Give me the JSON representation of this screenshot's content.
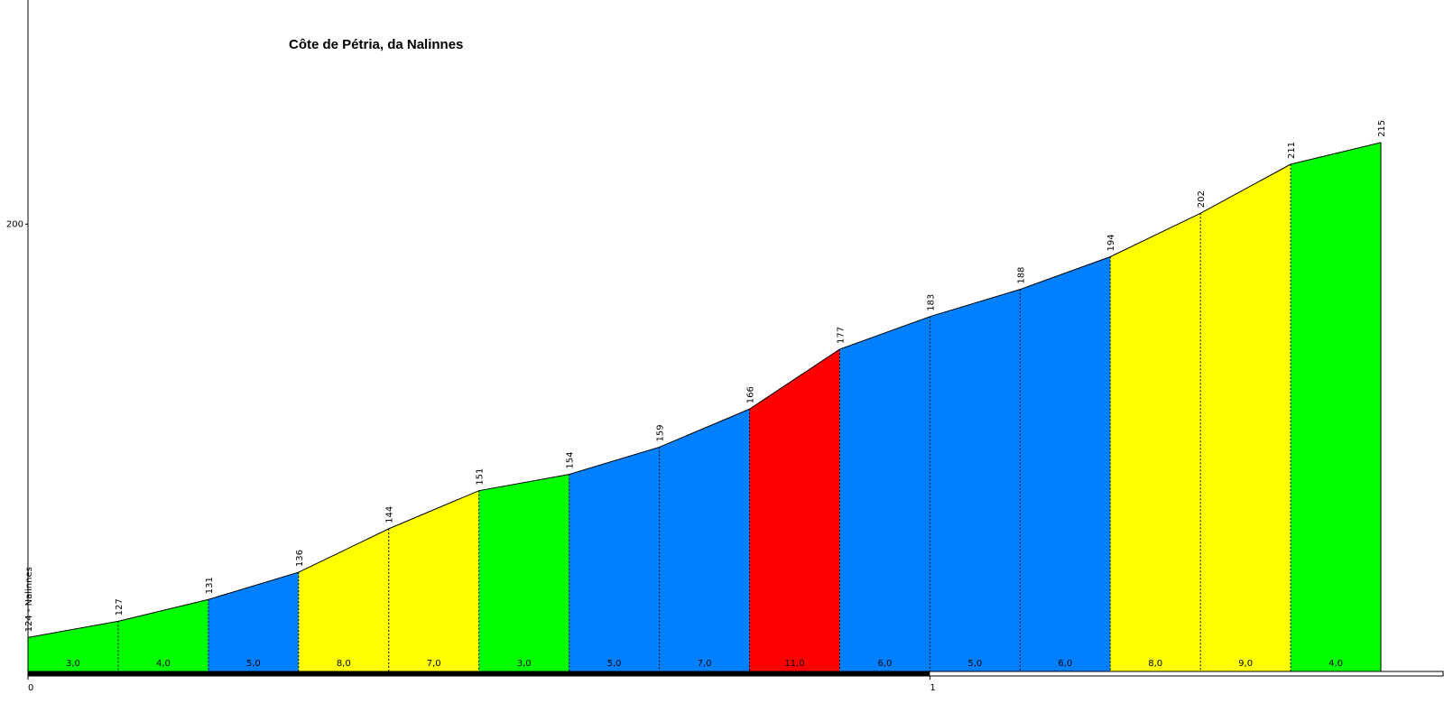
{
  "chart_data": {
    "type": "profile",
    "title": "Côte de Pétria, da Nalinnes",
    "x": [
      0,
      0.1,
      0.2,
      0.3,
      0.4,
      0.5,
      0.6,
      0.7,
      0.8,
      0.9,
      1.0,
      1.1,
      1.2,
      1.3,
      1.4,
      1.5
    ],
    "values": [
      124,
      127,
      131,
      136,
      144,
      151,
      154,
      159,
      166,
      177,
      183,
      188,
      194,
      202,
      211,
      215
    ],
    "value_labels": [
      "124 - Nalinnes",
      "127",
      "131",
      "136",
      "144",
      "151",
      "154",
      "159",
      "166",
      "177",
      "183",
      "188",
      "194",
      "202",
      "211",
      "215"
    ],
    "gradients": [
      "3,0",
      "4,0",
      "5,0",
      "8,0",
      "7,0",
      "3,0",
      "5,0",
      "7,0",
      "11,0",
      "6,0",
      "5,0",
      "6,0",
      "8,0",
      "9,0",
      "4,0"
    ],
    "segment_colors": [
      "#00ff00",
      "#00ff00",
      "#0080ff",
      "#ffff00",
      "#ffff00",
      "#00ff00",
      "#0080ff",
      "#0080ff",
      "#ff0000",
      "#0080ff",
      "#0080ff",
      "#0080ff",
      "#ffff00",
      "#ffff00",
      "#00ff00"
    ],
    "xlim": [
      0,
      1.57
    ],
    "ylim": [
      117.6,
      241.2
    ],
    "xticks": [
      0,
      1
    ],
    "yticks": [
      200
    ]
  }
}
